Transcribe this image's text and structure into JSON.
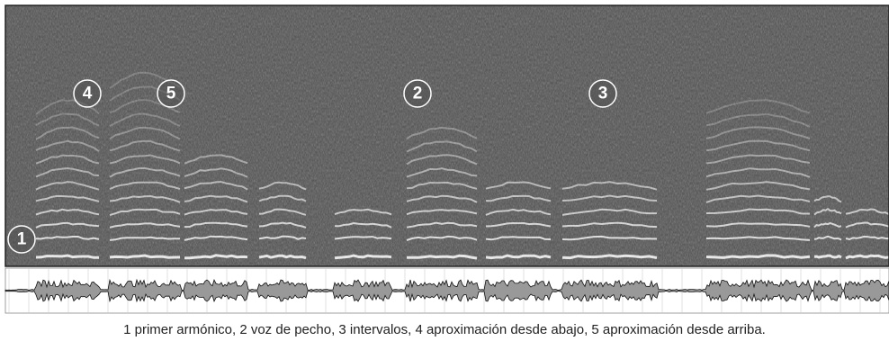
{
  "markers": [
    {
      "label": "1"
    },
    {
      "label": "2"
    },
    {
      "label": "3"
    },
    {
      "label": "4"
    },
    {
      "label": "5"
    }
  ],
  "caption": "1 primer armónico, 2 voz de pecho, 3 intervalos, 4 aproximación desde abajo, 5 aproximación desde arriba."
}
